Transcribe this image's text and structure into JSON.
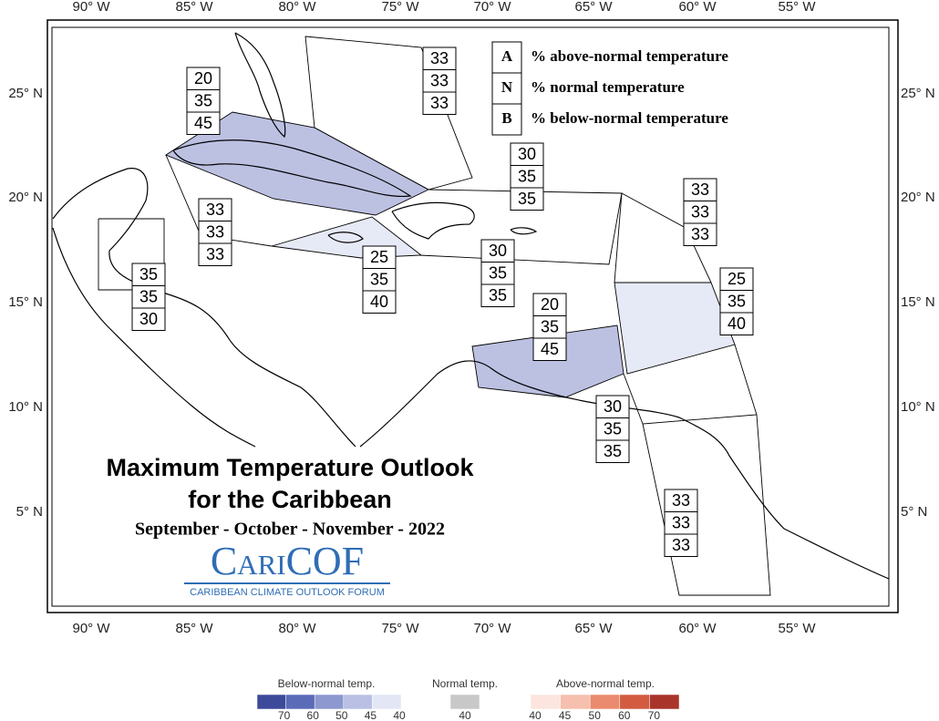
{
  "longitude_labels": [
    "90° W",
    "85° W",
    "80° W",
    "75° W",
    "70° W",
    "65° W",
    "60° W",
    "55° W"
  ],
  "latitude_labels": [
    "25° N",
    "20° N",
    "15° N",
    "10° N",
    "5° N"
  ],
  "title": {
    "line1": "Maximum Temperature Outlook",
    "line2": "for the Caribbean",
    "period": "September - October - November - 2022"
  },
  "logo": {
    "name": "CariCOF",
    "subtitle": "CARIBBEAN CLIMATE OUTLOOK FORUM"
  },
  "key": [
    {
      "letter": "A",
      "text": "% above-normal temperature"
    },
    {
      "letter": "N",
      "text": "% normal temperature"
    },
    {
      "letter": "B",
      "text": "% below-normal temperature"
    }
  ],
  "regions": [
    {
      "above": 33,
      "normal": 33,
      "below": 33
    },
    {
      "above": 20,
      "normal": 35,
      "below": 45
    },
    {
      "above": 30,
      "normal": 35,
      "below": 35
    },
    {
      "above": 33,
      "normal": 33,
      "below": 33
    },
    {
      "above": 33,
      "normal": 33,
      "below": 33
    },
    {
      "above": 25,
      "normal": 35,
      "below": 40
    },
    {
      "above": 30,
      "normal": 35,
      "below": 35
    },
    {
      "above": 35,
      "normal": 35,
      "below": 30
    },
    {
      "above": 25,
      "normal": 35,
      "below": 40
    },
    {
      "above": 20,
      "normal": 35,
      "below": 45
    },
    {
      "above": 30,
      "normal": 35,
      "below": 35
    },
    {
      "above": 33,
      "normal": 33,
      "below": 33
    }
  ],
  "legend": {
    "below": {
      "title": "Below-normal temp.",
      "levels": [
        70,
        60,
        50,
        45,
        40
      ]
    },
    "normal": {
      "title": "Normal temp.",
      "levels": [
        40
      ]
    },
    "above": {
      "title": "Above-normal temp.",
      "levels": [
        40,
        45,
        50,
        60,
        70
      ]
    }
  }
}
